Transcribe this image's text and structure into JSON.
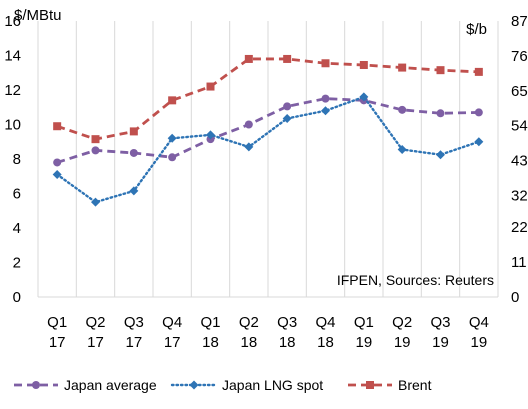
{
  "chart_data": {
    "type": "line",
    "categories": [
      [
        "Q1",
        "17"
      ],
      [
        "Q2",
        "17"
      ],
      [
        "Q3",
        "17"
      ],
      [
        "Q4",
        "17"
      ],
      [
        "Q1",
        "18"
      ],
      [
        "Q2",
        "18"
      ],
      [
        "Q3",
        "18"
      ],
      [
        "Q4",
        "18"
      ],
      [
        "Q1",
        "19"
      ],
      [
        "Q2",
        "19"
      ],
      [
        "Q3",
        "19"
      ],
      [
        "Q4",
        "19"
      ]
    ],
    "y_left": {
      "label": "$/MBtu",
      "min": 0,
      "max": 16,
      "ticks": [
        0,
        2,
        4,
        6,
        8,
        10,
        12,
        14,
        16
      ]
    },
    "y_right": {
      "label": "$/b",
      "min": 0,
      "max": 87,
      "ticks": [
        0,
        11,
        22,
        32,
        43,
        54,
        65,
        76,
        87
      ]
    },
    "grid": "vertical",
    "annotation": "IFPEN, Sources: Reuters",
    "legend_position": "bottom",
    "series": [
      {
        "name": "Japan average",
        "axis": "left",
        "color": "#7e5fa4",
        "style": "dashed",
        "marker": "circle",
        "values": [
          7.8,
          8.5,
          8.35,
          8.1,
          9.15,
          10.0,
          11.05,
          11.5,
          11.4,
          10.85,
          10.65,
          10.7
        ]
      },
      {
        "name": "Japan LNG spot",
        "axis": "left",
        "color": "#2e74b5",
        "style": "dotted",
        "marker": "diamond",
        "values": [
          7.1,
          5.5,
          6.15,
          9.2,
          9.4,
          8.7,
          10.35,
          10.8,
          11.6,
          8.55,
          8.25,
          9.0
        ]
      },
      {
        "name": "Brent",
        "axis": "left",
        "color": "#c0504d",
        "style": "dashed",
        "marker": "square",
        "values": [
          9.9,
          9.15,
          9.6,
          11.4,
          12.2,
          13.8,
          13.8,
          13.55,
          13.45,
          13.3,
          13.15,
          13.05
        ]
      }
    ]
  }
}
